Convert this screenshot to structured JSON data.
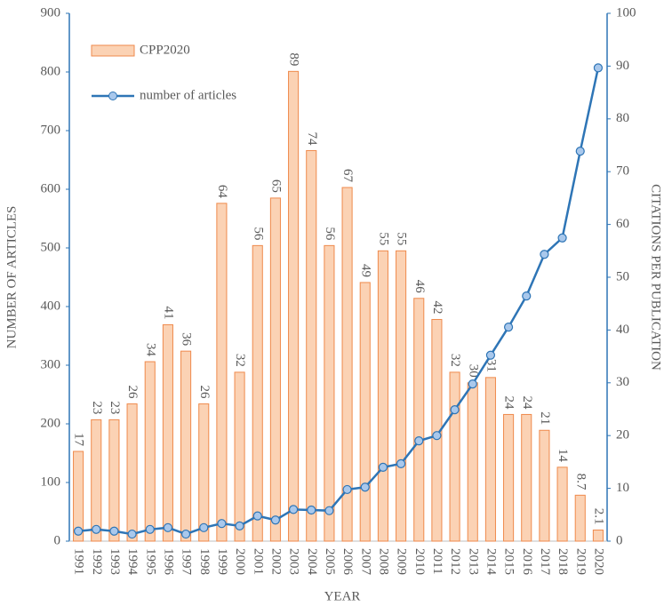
{
  "chart_data": {
    "type": "bar",
    "categories": [
      "1991",
      "1992",
      "1993",
      "1994",
      "1995",
      "1996",
      "1997",
      "1998",
      "1999",
      "2000",
      "2001",
      "2002",
      "2003",
      "2004",
      "2005",
      "2006",
      "2007",
      "2008",
      "2009",
      "2010",
      "2011",
      "2012",
      "2013",
      "2014",
      "2015",
      "2016",
      "2017",
      "2018",
      "2019",
      "2020"
    ],
    "series": [
      {
        "name": "CPP2020",
        "type": "bar",
        "axis": "y2",
        "color": "#fbd2b4",
        "stroke": "#ef8a4c",
        "values": [
          17,
          23,
          23,
          26,
          34,
          41,
          36,
          26,
          64,
          32,
          56,
          65,
          89,
          74,
          56,
          67,
          49,
          55,
          55,
          46,
          42,
          32,
          30,
          31,
          24,
          24,
          21,
          14,
          8.7,
          2.1
        ]
      },
      {
        "name": "number of articles",
        "type": "line",
        "color": "#2e75b6",
        "marker_color": "#a9c8ec",
        "values": [
          17,
          20,
          17,
          12,
          20,
          23,
          12,
          23,
          30,
          26,
          43,
          36,
          54,
          53,
          52,
          88,
          92,
          126,
          132,
          171,
          180,
          224,
          268,
          317,
          365,
          418,
          489,
          517,
          665,
          807
        ]
      }
    ],
    "x_label": "YEAR",
    "y_label": "NUMBER OF ARTICLES",
    "y2_label": "CITATIONS PER PUBLICATION",
    "ylim": [
      0,
      900
    ],
    "yticks": [
      0,
      100,
      200,
      300,
      400,
      500,
      600,
      700,
      800,
      900
    ],
    "y2lim": [
      0,
      100
    ],
    "y2ticks": [
      0,
      10,
      20,
      30,
      40,
      50,
      60,
      70,
      80,
      90,
      100
    ],
    "legend": "upper left"
  }
}
